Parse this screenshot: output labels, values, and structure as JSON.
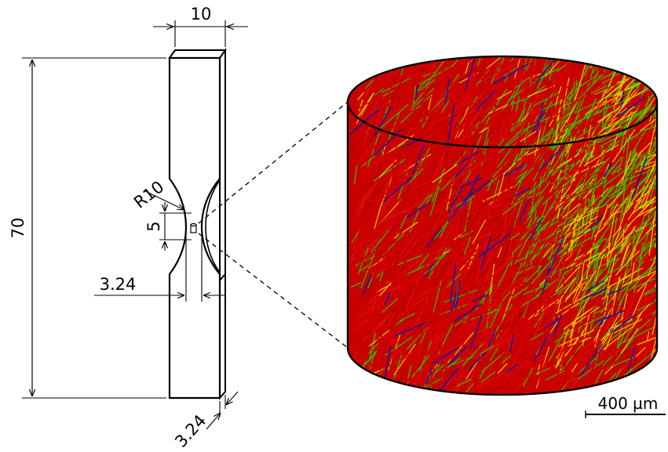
{
  "dimensions": {
    "width_top": "10",
    "length_total": "70",
    "radius": "R10",
    "gauge_length": "5",
    "gauge_width": "3.24",
    "thickness": "3.24"
  },
  "scale_bar": {
    "label": "400 µm"
  },
  "colors": {
    "fiber_red": "#d40000",
    "fiber_green": "#3cb400",
    "fiber_yellow": "#e6c800",
    "fiber_blue": "#1a1aa0",
    "outline": "#000000"
  }
}
